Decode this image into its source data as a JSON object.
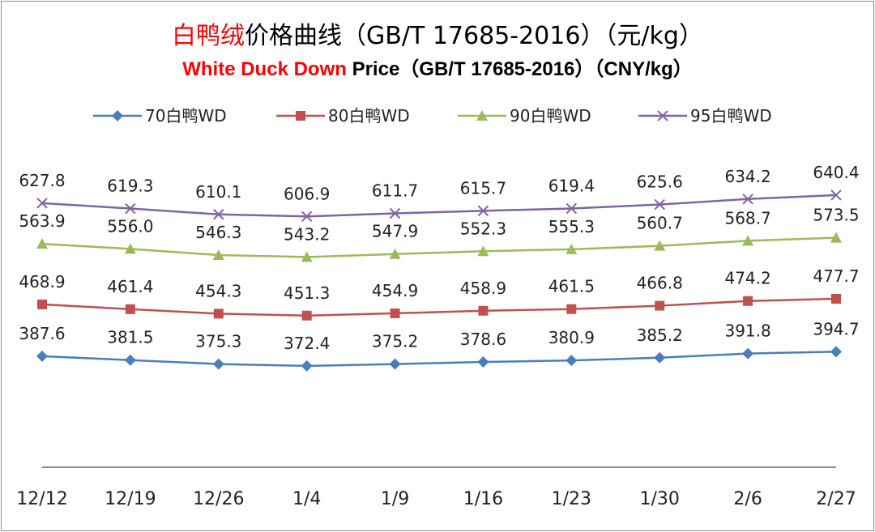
{
  "chart_data": {
    "type": "line",
    "title_red": "白鸭绒",
    "title_rest": "价格曲线（GB/T 17685-2016）（元/kg）",
    "subtitle_red": "White Duck Down",
    "subtitle_rest": " Price（GB/T 17685-2016）（CNY/kg）",
    "categories": [
      "12/12",
      "12/19",
      "12/26",
      "1/4",
      "1/9",
      "1/16",
      "1/23",
      "1/30",
      "2/6",
      "2/27"
    ],
    "series": [
      {
        "name": "70白鸭WD",
        "color": "#4a7ebb",
        "marker": "diamond",
        "values": [
          387.6,
          381.5,
          375.3,
          372.4,
          375.2,
          378.6,
          380.9,
          385.2,
          391.8,
          394.7
        ],
        "labels": [
          "387.6",
          "381.5",
          "375.3",
          "372.4",
          "375.2",
          "378.6",
          "380.9",
          "385.2",
          "391.8",
          "394.7"
        ]
      },
      {
        "name": "80白鸭WD",
        "color": "#c0504d",
        "marker": "square",
        "values": [
          468.9,
          461.4,
          454.3,
          451.3,
          454.9,
          458.9,
          461.5,
          466.8,
          474.2,
          477.7
        ],
        "labels": [
          "468.9",
          "461.4",
          "454.3",
          "451.3",
          "454.9",
          "458.9",
          "461.5",
          "466.8",
          "474.2",
          "477.7"
        ]
      },
      {
        "name": "90白鸭WD",
        "color": "#9bbb59",
        "marker": "triangle",
        "values": [
          563.9,
          556.0,
          546.3,
          543.2,
          547.9,
          552.3,
          555.3,
          560.7,
          568.7,
          573.5
        ],
        "labels": [
          "563.9",
          "556.0",
          "546.3",
          "543.2",
          "547.9",
          "552.3",
          "555.3",
          "560.7",
          "568.7",
          "573.5"
        ]
      },
      {
        "name": "95白鸭WD",
        "color": "#8064a2",
        "marker": "x",
        "values": [
          627.8,
          619.3,
          610.1,
          606.9,
          611.7,
          615.7,
          619.4,
          625.6,
          634.2,
          640.4
        ],
        "labels": [
          "627.8",
          "619.3",
          "610.1",
          "606.9",
          "611.7",
          "615.7",
          "619.4",
          "625.6",
          "634.2",
          "640.4"
        ]
      }
    ],
    "ylim": [
      0,
      700
    ],
    "xlabel": "",
    "ylabel": "",
    "grid": false,
    "legend": "top"
  }
}
